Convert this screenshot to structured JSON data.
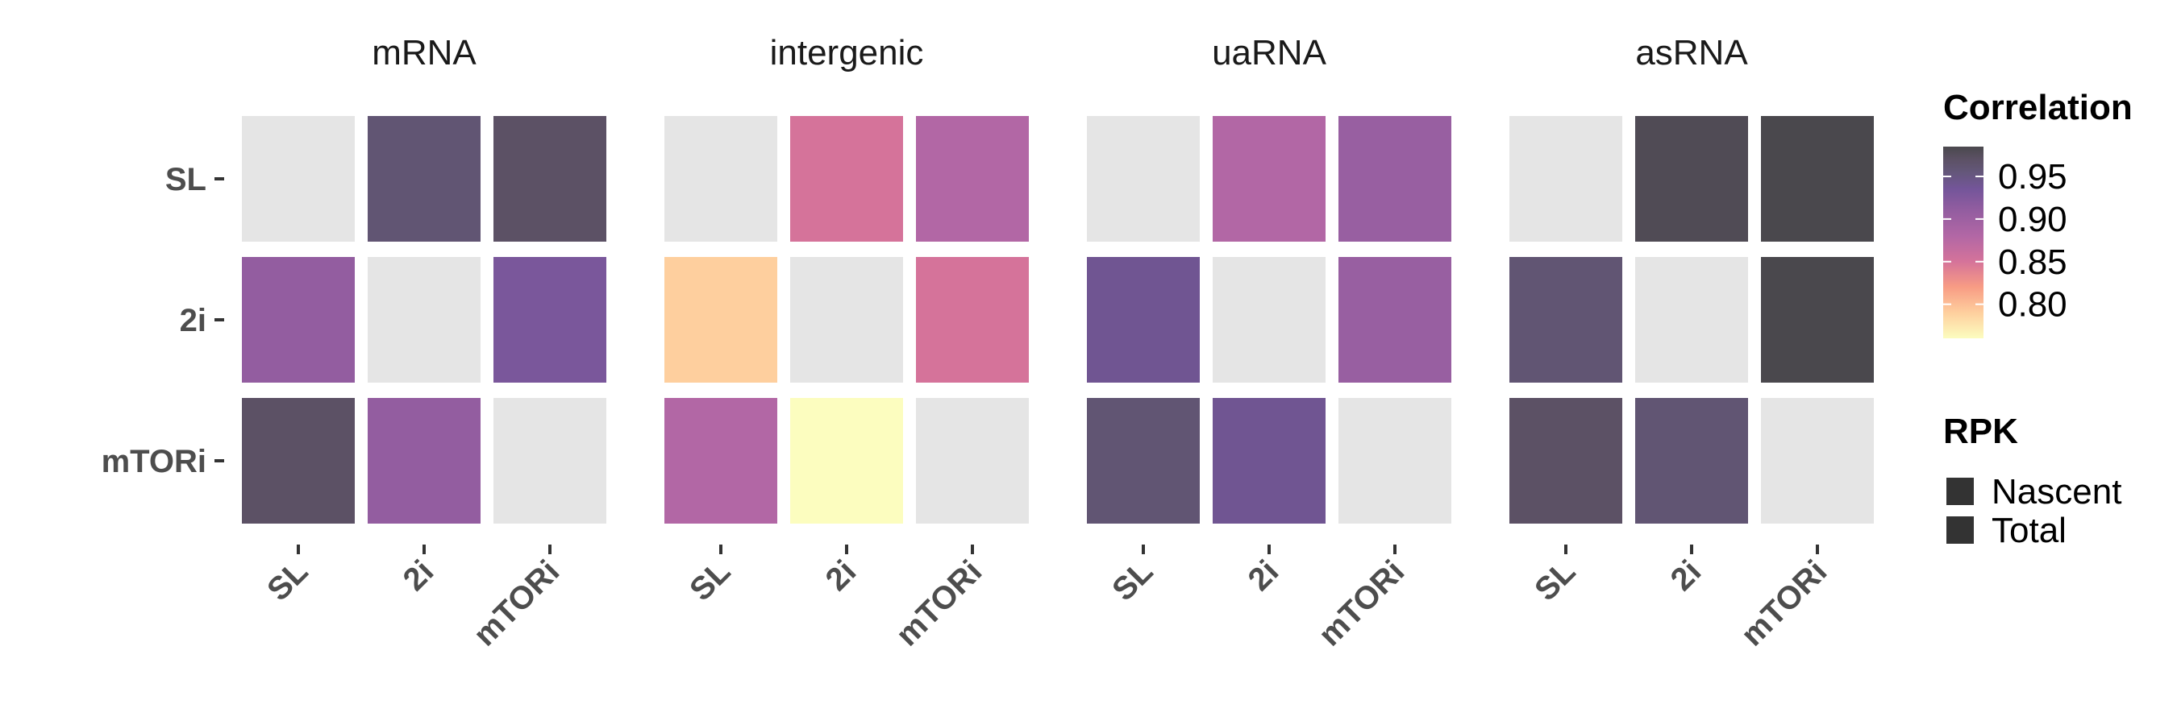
{
  "chart_data": {
    "type": "heatmap",
    "panels": [
      {
        "title": "mRNA",
        "rows": [
          "SL",
          "2i",
          "mTORi"
        ],
        "cols": [
          "SL",
          "2i",
          "mTORi"
        ],
        "values": [
          [
            null,
            0.96,
            0.97
          ],
          [
            0.91,
            null,
            0.93
          ],
          [
            0.97,
            0.91,
            null
          ]
        ]
      },
      {
        "title": "intergenic",
        "rows": [
          "SL",
          "2i",
          "mTORi"
        ],
        "cols": [
          "SL",
          "2i",
          "mTORi"
        ],
        "values": [
          [
            null,
            0.85,
            0.88
          ],
          [
            0.79,
            null,
            0.85
          ],
          [
            0.88,
            0.76,
            null
          ]
        ]
      },
      {
        "title": "uaRNA",
        "rows": [
          "SL",
          "2i",
          "mTORi"
        ],
        "cols": [
          "SL",
          "2i",
          "mTORi"
        ],
        "values": [
          [
            null,
            0.88,
            0.905
          ],
          [
            0.94,
            null,
            0.905
          ],
          [
            0.96,
            0.94,
            null
          ]
        ]
      },
      {
        "title": "asRNA",
        "rows": [
          "SL",
          "2i",
          "mTORi"
        ],
        "cols": [
          "SL",
          "2i",
          "mTORi"
        ],
        "values": [
          [
            null,
            0.98,
            0.99
          ],
          [
            0.96,
            null,
            0.99
          ],
          [
            0.97,
            0.96,
            null
          ]
        ]
      }
    ],
    "na_color": "#e5e5e5",
    "colorbar": {
      "title": "Correlation",
      "ticks": [
        0.95,
        0.9,
        0.85,
        0.8
      ],
      "tick_labels": [
        "0.95",
        "0.90",
        "0.85",
        "0.80"
      ],
      "min": 0.76,
      "max": 0.985,
      "stops": [
        {
          "value": 0.76,
          "color": "#fcfdbf"
        },
        {
          "value": 0.79,
          "color": "#fecf9e"
        },
        {
          "value": 0.82,
          "color": "#f89c84"
        },
        {
          "value": 0.85,
          "color": "#d5739a"
        },
        {
          "value": 0.88,
          "color": "#b267a5"
        },
        {
          "value": 0.91,
          "color": "#935da0"
        },
        {
          "value": 0.935,
          "color": "#74559a"
        },
        {
          "value": 0.955,
          "color": "#64577a"
        },
        {
          "value": 0.97,
          "color": "#5c5165"
        },
        {
          "value": 0.985,
          "color": "#4a484d"
        }
      ]
    },
    "shape_legend": {
      "title": "RPK",
      "items": [
        "Nascent",
        "Total"
      ],
      "color": "#333333"
    }
  }
}
